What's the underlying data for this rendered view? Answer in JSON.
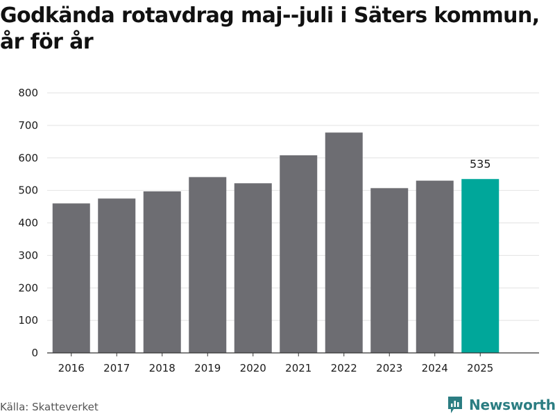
{
  "header": {
    "title_line1": "Godkända rotavdrag maj--juli i Säters kommun,",
    "title_line2": "år för år"
  },
  "footer": {
    "source": "Källa: Skatteverket",
    "brand": "Newsworthy"
  },
  "colors": {
    "bar": "#6d6d72",
    "highlight": "#00a79a",
    "grid": "#e2e2e2",
    "axis": "#333333",
    "text": "#1a1a1a",
    "brand": "#2b7d82"
  },
  "chart_data": {
    "type": "bar",
    "title": "Godkända rotavdrag maj--juli i Säters kommun, år för år",
    "xlabel": "",
    "ylabel": "",
    "categories": [
      "2016",
      "2017",
      "2018",
      "2019",
      "2020",
      "2021",
      "2022",
      "2023",
      "2024",
      "2025"
    ],
    "values": [
      460,
      475,
      497,
      541,
      522,
      608,
      678,
      507,
      530,
      535
    ],
    "ylim": [
      0,
      800
    ],
    "yticks": [
      0,
      100,
      200,
      300,
      400,
      500,
      600,
      700,
      800
    ],
    "highlight_index": 9,
    "data_labels": [
      {
        "index": 9,
        "text": "535"
      }
    ],
    "grid": true
  }
}
